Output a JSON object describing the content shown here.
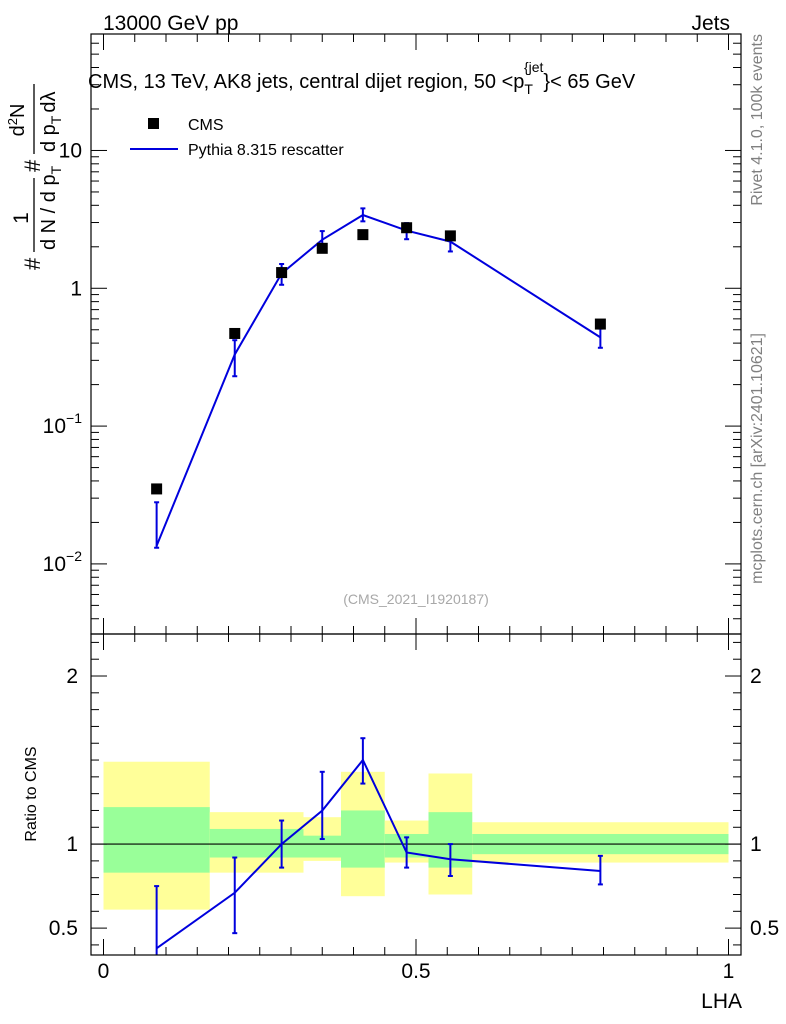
{
  "header": {
    "left": "13000 GeV pp",
    "right": "Jets"
  },
  "side": {
    "rivet": "Rivet 4.1.0,  100k events",
    "mcplots": "mcplots.cern.ch [arXiv:2401.10621]"
  },
  "watermark": "(CMS_2021_I1920187)",
  "colors": {
    "mc": "#0000dd",
    "band_inner": "#99ff99",
    "band_outer": "#ffff99",
    "data": "#000000"
  },
  "chart_data": [
    {
      "id": "main",
      "type": "scatter",
      "title_parts": {
        "before": "CMS, 13 TeV, AK8 jets, central dijet region, 50 <p",
        "sub": "T",
        "sup": "{jet",
        "after": "}< 65 GeV"
      },
      "ylabel_parts": {
        "prefix": "#",
        "num": "1",
        "den_main": "d N / d p",
        "den_sub": "T",
        "hash_mid": "#",
        "num2": "d",
        "num2_sup": "2",
        "num2_end": "N",
        "den2_main": "d p",
        "den2_sub": "T",
        "den2_end": "dλ"
      },
      "yscale": "log",
      "ylim": [
        0.0031,
        70
      ],
      "xlim": [
        -0.02,
        1.02
      ],
      "y_ticks": [
        {
          "value": 0.01,
          "base": "10",
          "exp": "−2"
        },
        {
          "value": 0.1,
          "base": "10",
          "exp": "−1"
        },
        {
          "value": 1,
          "base": "1",
          "exp": ""
        },
        {
          "value": 10,
          "base": "10",
          "exp": ""
        }
      ],
      "legend": {
        "position": "top-left",
        "entries": [
          {
            "name": "CMS",
            "marker": "square"
          },
          {
            "name": "Pythia 8.315 rescatter",
            "marker": "line"
          }
        ]
      },
      "series": [
        {
          "name": "CMS",
          "x": [
            0.085,
            0.21,
            0.285,
            0.35,
            0.415,
            0.485,
            0.555,
            0.795
          ],
          "y": [
            0.035,
            0.47,
            1.3,
            1.95,
            2.45,
            2.75,
            2.4,
            0.55
          ]
        },
        {
          "name": "Pythia 8.315 rescatter",
          "x": [
            0.085,
            0.21,
            0.285,
            0.35,
            0.415,
            0.485,
            0.555,
            0.795
          ],
          "y": [
            0.0135,
            0.33,
            1.28,
            2.25,
            3.4,
            2.62,
            2.18,
            0.44
          ],
          "err_lo": [
            0.0131,
            0.23,
            1.06,
            1.92,
            3.06,
            2.27,
            1.85,
            0.37
          ],
          "err_hi": [
            0.028,
            0.42,
            1.5,
            2.6,
            3.8,
            2.97,
            2.52,
            0.51
          ]
        }
      ]
    },
    {
      "id": "ratio",
      "type": "line",
      "ylabel": "Ratio to CMS",
      "xlabel": "LHA",
      "xlim": [
        -0.02,
        1.02
      ],
      "ylim": [
        0.34,
        2.25
      ],
      "x_ticks": [
        {
          "value": 0,
          "label": "0"
        },
        {
          "value": 0.5,
          "label": "0.5"
        },
        {
          "value": 1,
          "label": "1"
        }
      ],
      "y_ticks": [
        {
          "value": 0.5,
          "label": "0.5"
        },
        {
          "value": 1,
          "label": "1"
        },
        {
          "value": 2,
          "label": "2"
        }
      ],
      "bands": [
        {
          "x0": 0.0,
          "x1": 0.17,
          "inner": [
            0.83,
            1.22
          ],
          "outer": [
            0.61,
            1.49
          ]
        },
        {
          "x0": 0.17,
          "x1": 0.32,
          "inner": [
            0.92,
            1.09
          ],
          "outer": [
            0.83,
            1.19
          ]
        },
        {
          "x0": 0.32,
          "x1": 0.38,
          "inner": [
            0.92,
            1.05
          ],
          "outer": [
            0.9,
            1.16
          ]
        },
        {
          "x0": 0.38,
          "x1": 0.45,
          "inner": [
            0.86,
            1.2
          ],
          "outer": [
            0.69,
            1.43
          ]
        },
        {
          "x0": 0.45,
          "x1": 0.52,
          "inner": [
            0.92,
            1.06
          ],
          "outer": [
            0.89,
            1.14
          ]
        },
        {
          "x0": 0.52,
          "x1": 0.59,
          "inner": [
            0.86,
            1.19
          ],
          "outer": [
            0.7,
            1.42
          ]
        },
        {
          "x0": 0.59,
          "x1": 1.0,
          "inner": [
            0.94,
            1.06
          ],
          "outer": [
            0.89,
            1.13
          ]
        }
      ],
      "series": [
        {
          "name": "Pythia 8.315 rescatter / CMS",
          "x": [
            0.085,
            0.21,
            0.285,
            0.35,
            0.415,
            0.485,
            0.555,
            0.795
          ],
          "y": [
            0.38,
            0.71,
            1.0,
            1.2,
            1.5,
            0.95,
            0.91,
            0.84
          ],
          "err_lo": [
            0.0,
            0.47,
            0.86,
            1.03,
            1.36,
            0.86,
            0.81,
            0.76
          ],
          "err_hi": [
            0.75,
            0.92,
            1.14,
            1.43,
            1.63,
            1.04,
            1.0,
            0.93
          ]
        }
      ]
    }
  ]
}
